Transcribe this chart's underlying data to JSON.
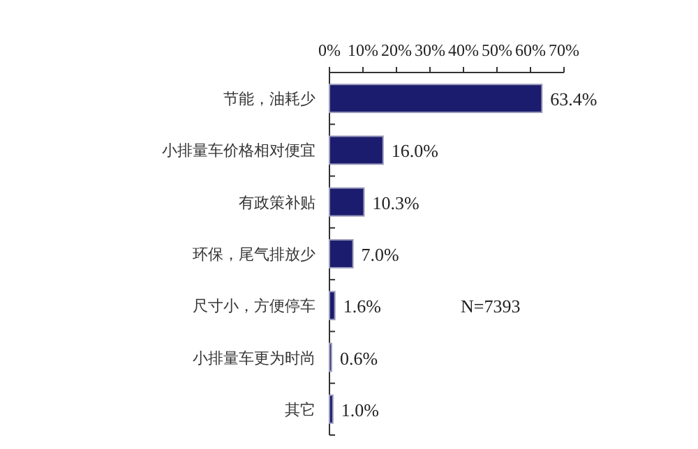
{
  "chart_data": {
    "type": "bar",
    "orientation": "horizontal",
    "categories": [
      "节能，油耗少",
      "小排量车价格相对便宜",
      "有政策补贴",
      "环保，尾气排放少",
      "尺寸小，方便停车",
      "小排量车更为时尚",
      "其它"
    ],
    "values": [
      63.4,
      16.0,
      10.3,
      7.0,
      1.6,
      0.6,
      1.0
    ],
    "value_labels": [
      "63.4%",
      "16.0%",
      "10.3%",
      "7.0%",
      "1.6%",
      "0.6%",
      "1.0%"
    ],
    "color": "#1c1c6e",
    "xlim": [
      0,
      70
    ],
    "xticks": [
      {
        "value": 0,
        "label": "0%"
      },
      {
        "value": 10,
        "label": "10%"
      },
      {
        "value": 20,
        "label": "20%"
      },
      {
        "value": 30,
        "label": "30%"
      },
      {
        "value": 40,
        "label": "40%"
      },
      {
        "value": 50,
        "label": "50%"
      },
      {
        "value": 60,
        "label": "60%"
      },
      {
        "value": 70,
        "label": "70%"
      }
    ],
    "annotations": [
      "N=7393"
    ]
  }
}
